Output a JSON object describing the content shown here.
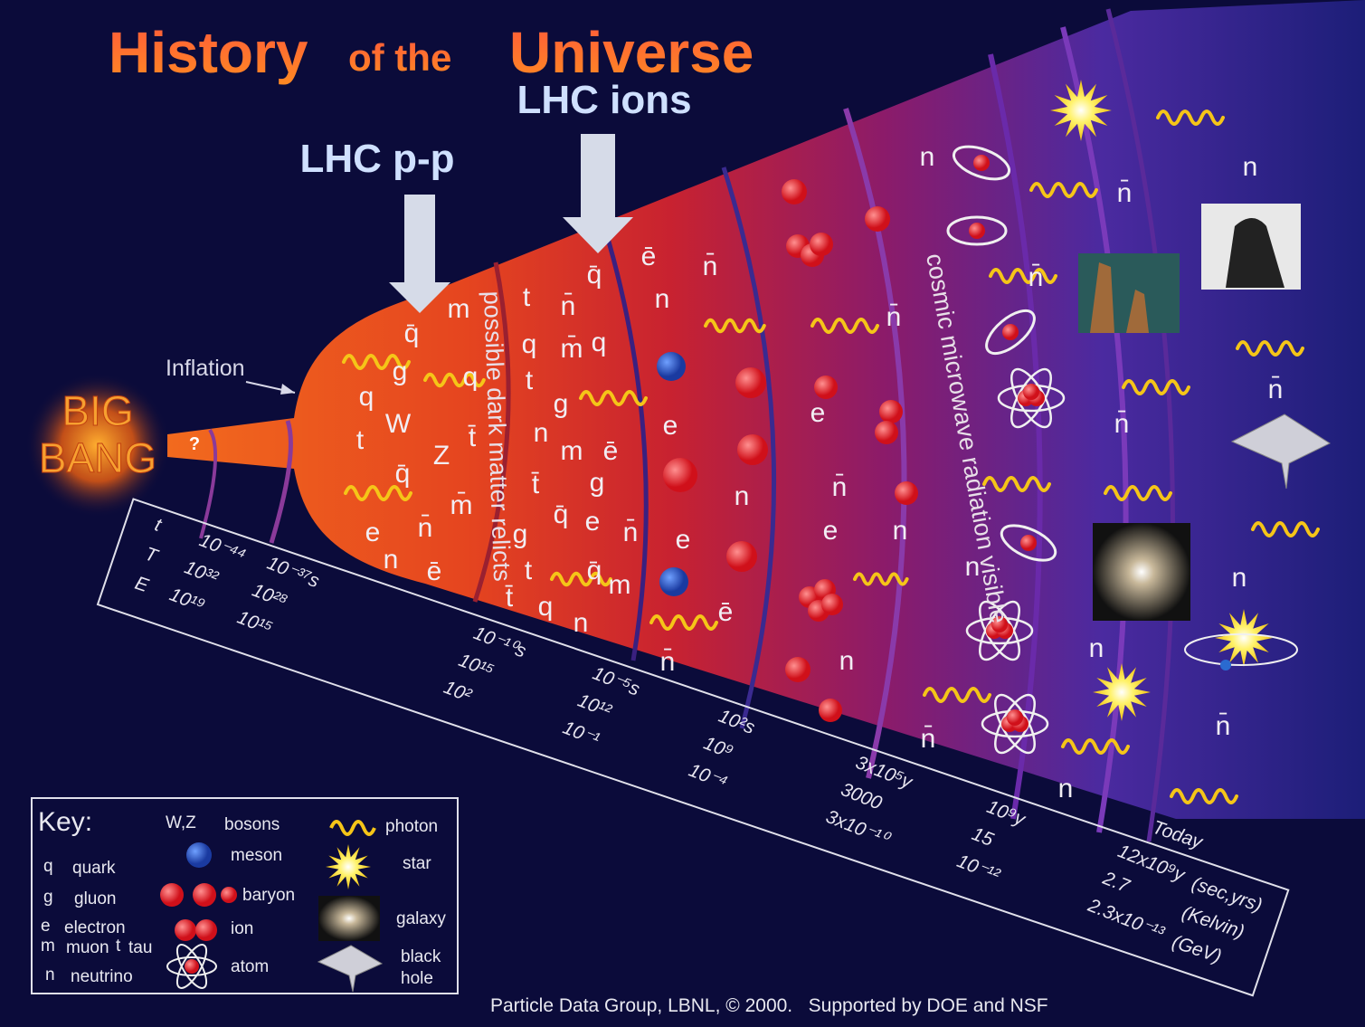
{
  "title": {
    "first": "History",
    "middle": "of the",
    "last": "Universe"
  },
  "lhc_pp": "LHC p-p",
  "lhc_ions": "LHC ions",
  "big_bang": [
    "BIG",
    "BANG"
  ],
  "question": "?",
  "inflation": "Inflation",
  "regions": {
    "dark_matter": "possible dark matter relicts",
    "cmb": "cosmic microwave radiation visible"
  },
  "particles": [
    "q̄",
    "m",
    "g",
    "q",
    "q",
    "t",
    "W",
    "Z",
    "q̄",
    "m̄",
    "e",
    "n̄",
    "n",
    "ē",
    "t̄",
    "t",
    "n̄",
    "q̄",
    "q",
    "m̄",
    "q",
    "t",
    "g",
    "n",
    "m",
    "ē",
    "t̄",
    "g",
    "q̄",
    "e",
    "g",
    "t",
    "q̄",
    "m",
    "t̄",
    "q",
    "n",
    "n̄",
    "ē",
    "n̄",
    "n",
    "e",
    "n",
    "e",
    "ē",
    "n̄",
    "n̄",
    "e",
    "n̄",
    "e",
    "n",
    "n",
    "n",
    "n̄",
    "n",
    "n̄",
    "n̄",
    "n̄",
    "n",
    "n",
    "n",
    "n̄",
    "n",
    "n̄"
  ],
  "timeline": {
    "row_labels": [
      "t",
      "T",
      "E"
    ],
    "epochs": [
      [
        "10⁻⁴⁴",
        "10³²",
        "10¹⁹"
      ],
      [
        "10⁻³⁷s",
        "10²⁸",
        "10¹⁵"
      ],
      [
        "10⁻¹⁰s",
        "10¹⁵",
        "10²"
      ],
      [
        "10⁻⁵s",
        "10¹²",
        "10⁻¹"
      ],
      [
        "10²s",
        "10⁹",
        "10⁻⁴"
      ],
      [
        "3x10⁵y",
        "3000",
        "3x10⁻¹⁰"
      ],
      [
        "10⁹y",
        "15",
        "10⁻¹²"
      ],
      [
        "12x10⁹y",
        "2.7",
        "2.3x10⁻¹³"
      ]
    ],
    "units": [
      "(sec,yrs)",
      "(Kelvin)",
      "(GeV)"
    ],
    "today": "Today"
  },
  "key": {
    "title": "Key:",
    "letters": [
      {
        "symbol": "q",
        "name": "quark"
      },
      {
        "symbol": "g",
        "name": "gluon"
      },
      {
        "symbol": "e",
        "name": "electron"
      },
      {
        "symbol": "m",
        "name": "muon"
      },
      {
        "symbol": "t",
        "name": "tau"
      },
      {
        "symbol": "n",
        "name": "neutrino"
      }
    ],
    "bosons": {
      "symbol": "W,Z",
      "name": "bosons"
    },
    "meson": "meson",
    "baryon": "baryon",
    "ion": "ion",
    "atom": "atom",
    "photon": "photon",
    "star": "star",
    "galaxy": "galaxy",
    "black_hole": [
      "black",
      "hole"
    ]
  },
  "footer": "Particle Data Group, LBNL, © 2000.   Supported by DOE and NSF"
}
